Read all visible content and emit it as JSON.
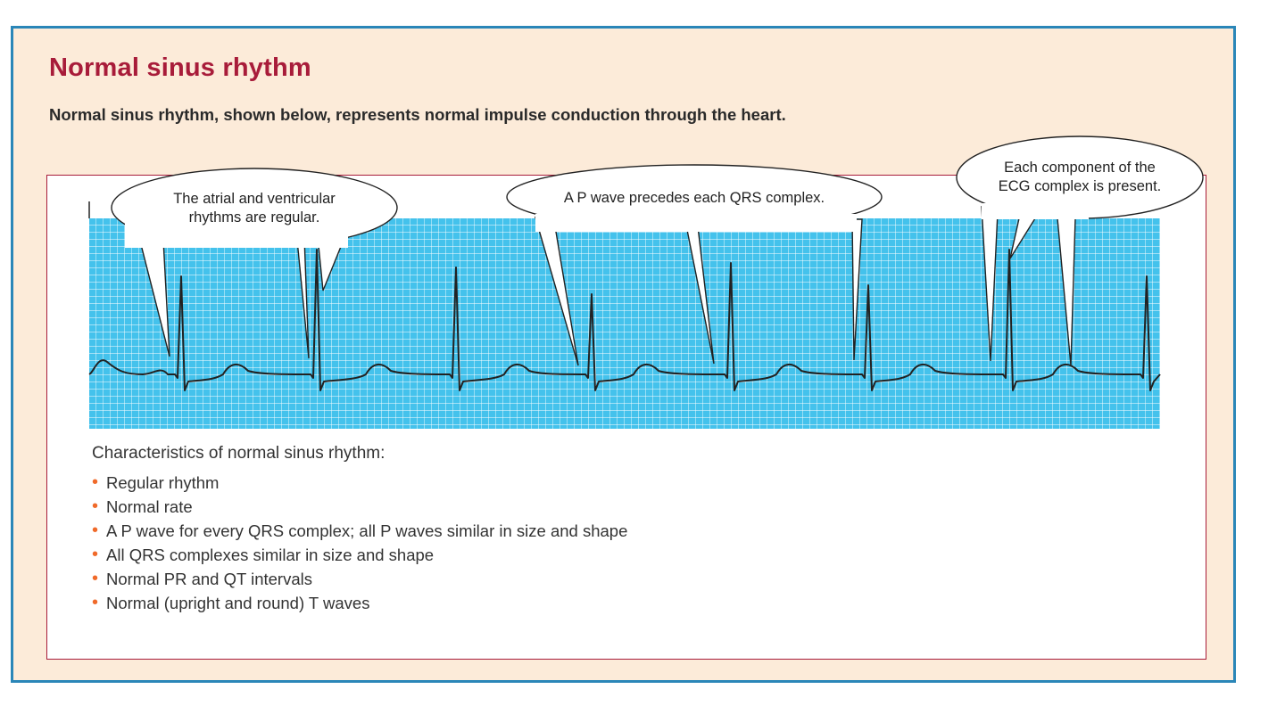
{
  "title": "Normal sinus rhythm",
  "subtitle": "Normal sinus rhythm, shown below, represents normal impulse conduction through the heart.",
  "callouts": [
    {
      "line1": "The atrial and ventricular",
      "line2": "rhythms are regular."
    },
    {
      "line1": "A P wave precedes each QRS complex."
    },
    {
      "line1": "Each component of the",
      "line2": "ECG complex is present."
    }
  ],
  "characteristics": {
    "heading": "Characteristics of normal sinus rhythm:",
    "items": [
      "Regular rhythm",
      "Normal rate",
      "A P wave for every QRS complex; all P waves similar in size and shape",
      "All QRS complexes similar in size and shape",
      "Normal PR and QT intervals",
      "Normal (upright and round) T waves"
    ]
  },
  "colors": {
    "title": "#a81c3a",
    "panel_border": "#2a86b8",
    "panel_background": "#fcebd9",
    "grid_background": "#44c2ec",
    "grid_lines": "#ffffff",
    "trace": "#222222",
    "bullet": "#f06a2a"
  }
}
